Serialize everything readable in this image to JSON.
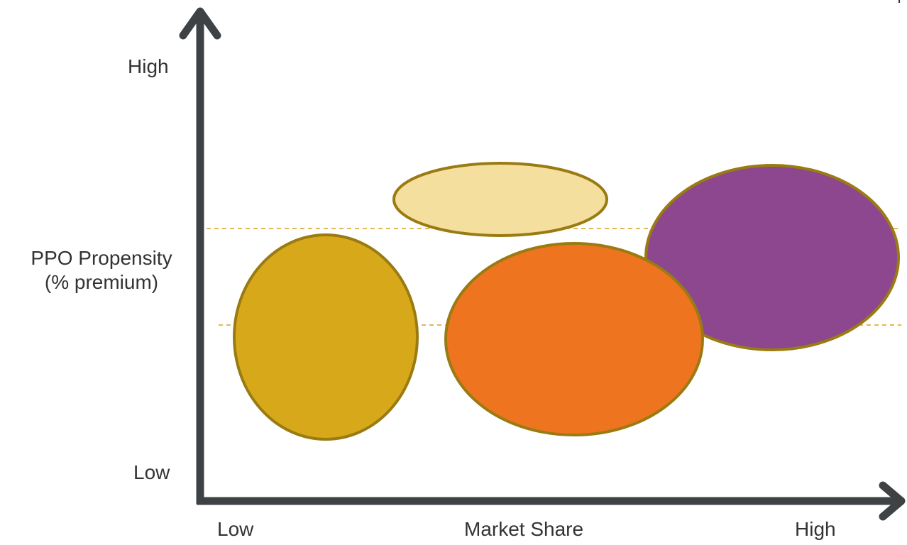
{
  "axes": {
    "y_high": "High",
    "y_low": "Low",
    "y_title_line1": "PPO Propensity",
    "y_title_line2": "(% premium)",
    "x_low": "Low",
    "x_title": "Market Share",
    "x_high": "High"
  },
  "corner_text": "I",
  "colors": {
    "axis": "#3f4245",
    "outline": "#9a7b12",
    "dashed_line": "#d6a21e",
    "ellipse_gold": "#d7a91a",
    "ellipse_light": "#f4df9e",
    "ellipse_orange": "#ee7420",
    "ellipse_purple": "#8c478f"
  }
}
